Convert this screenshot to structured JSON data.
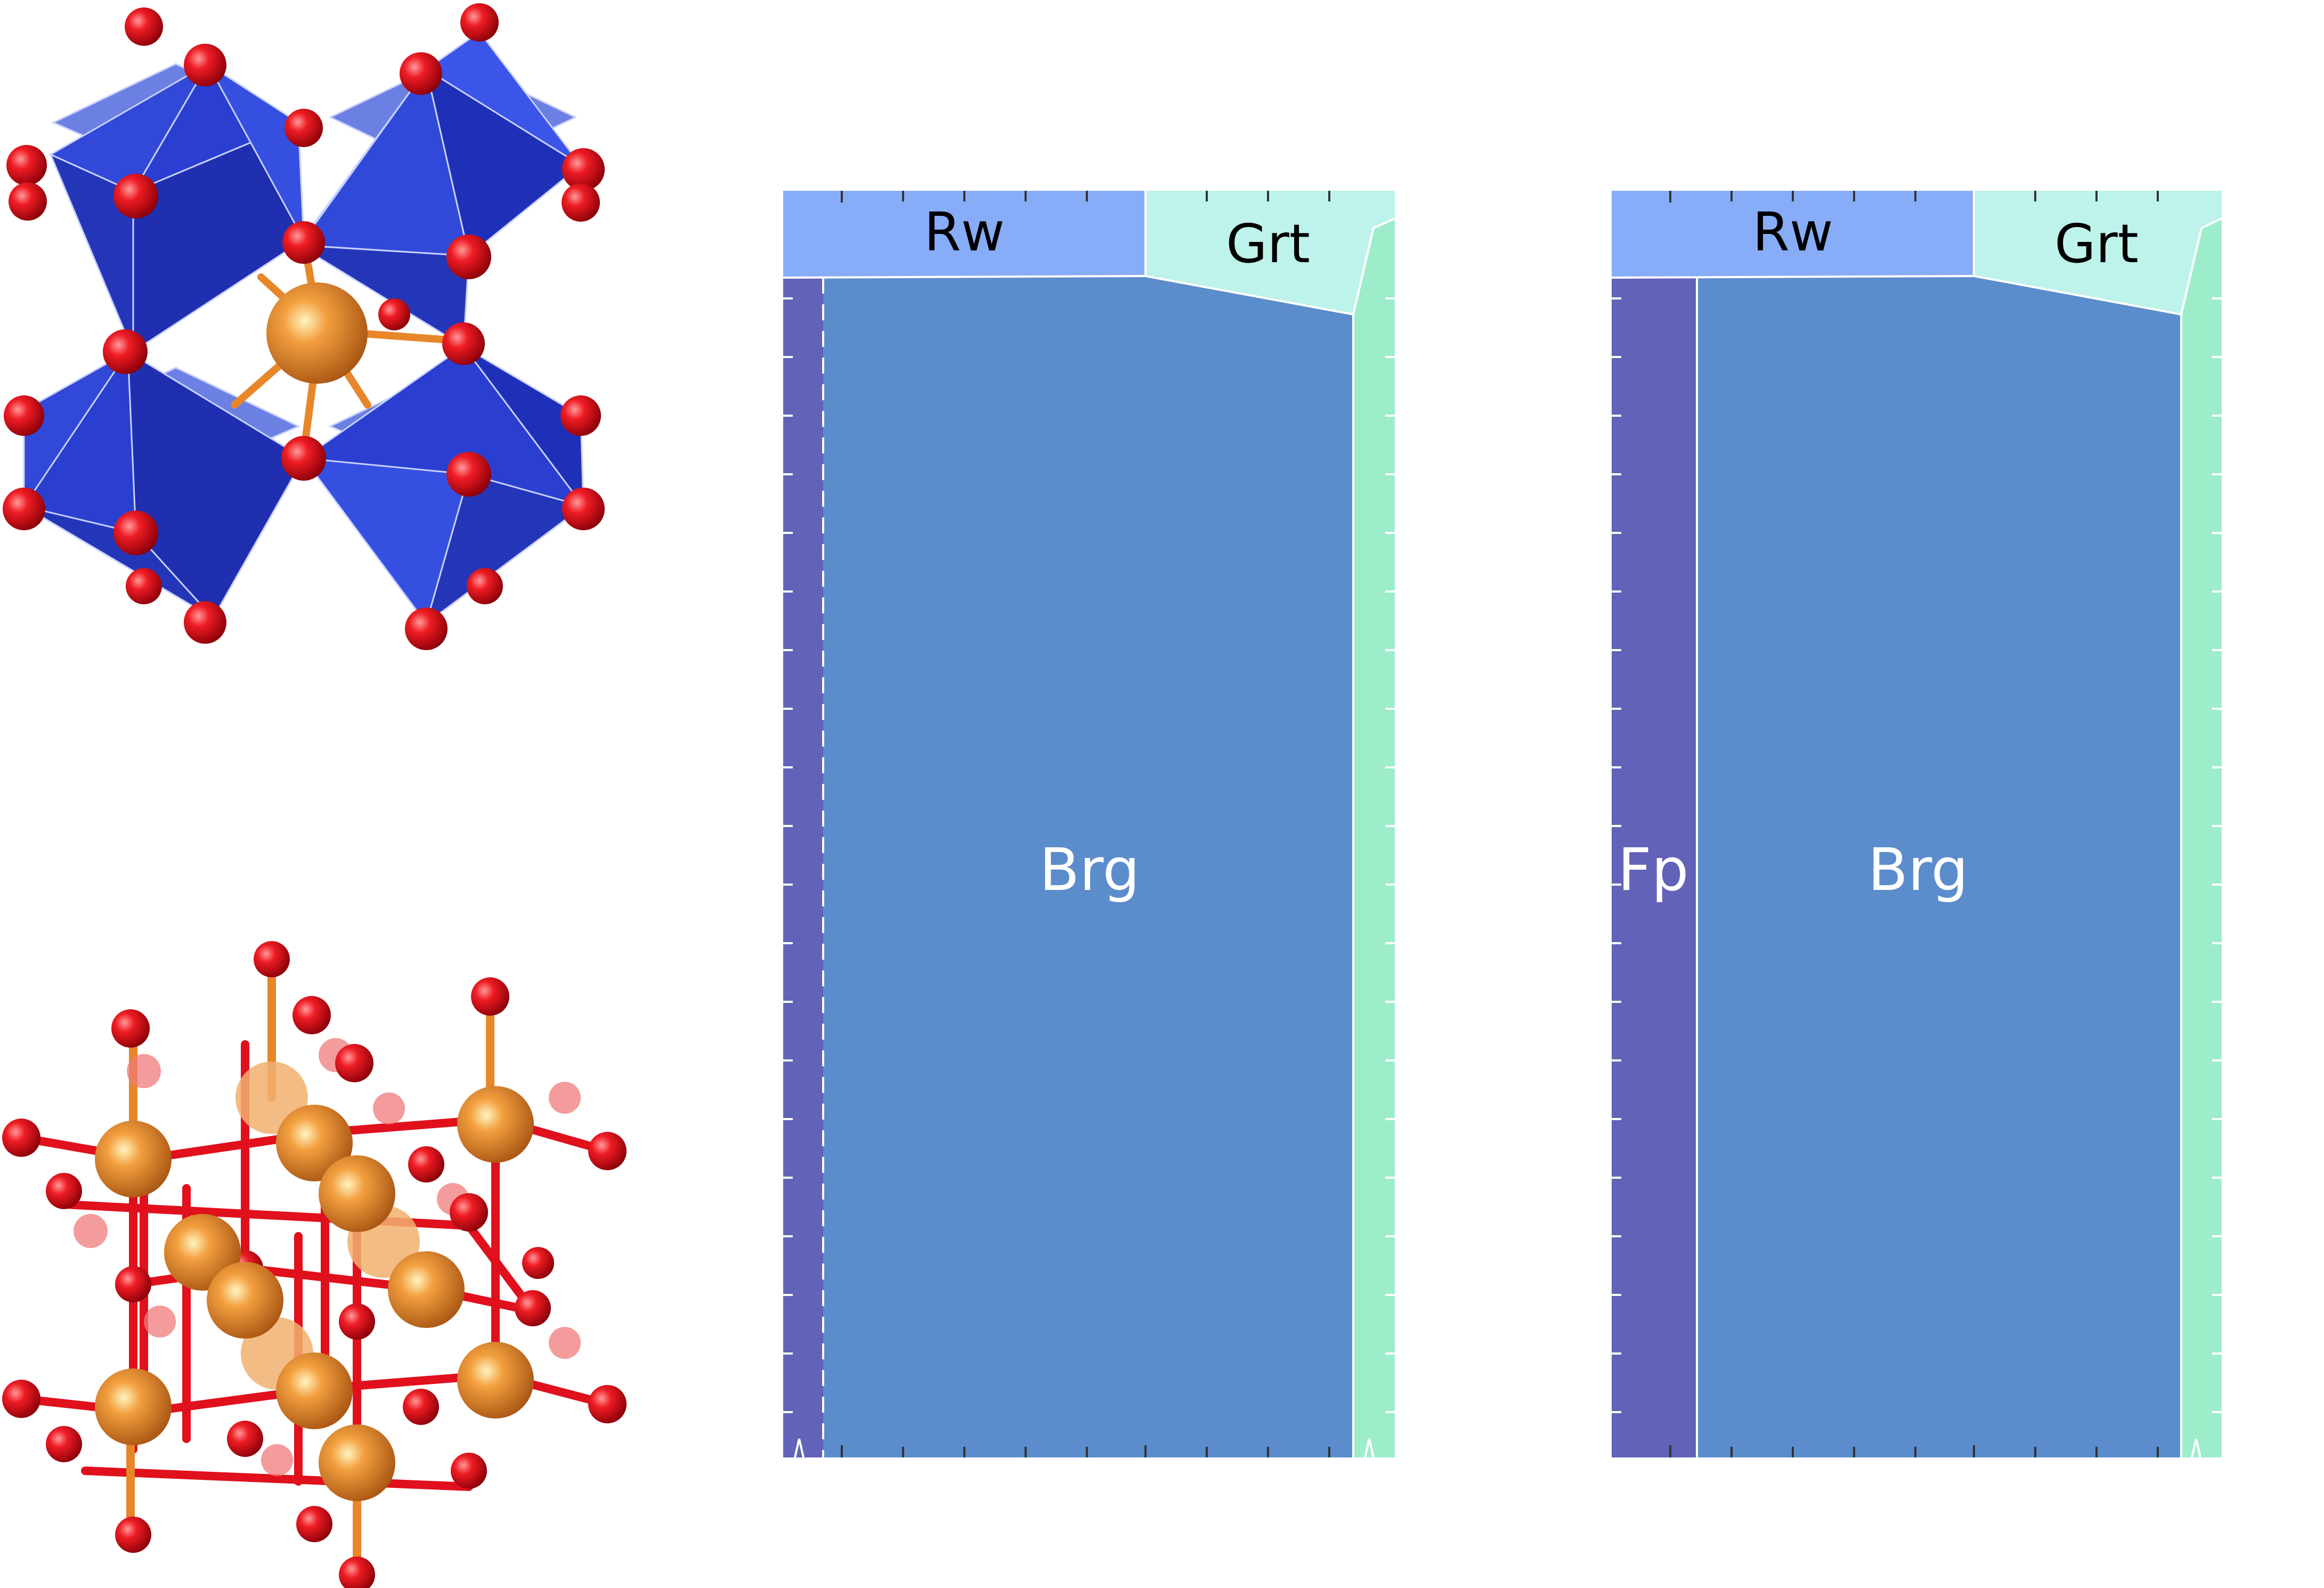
{
  "labels": {
    "left_panel": {
      "rw": "Rw",
      "grt": "Grt",
      "brg": "Brg"
    },
    "right_panel": {
      "rw": "Rw",
      "grt": "Grt",
      "brg": "Brg",
      "fp": "Fp"
    }
  },
  "colors": {
    "rw": "#88adf8",
    "grt": "#bdf3eb",
    "grt_edge": "#9decca",
    "brg": "#5b8ccc",
    "fp": "#6162b8",
    "octahedron": "#2f45d0",
    "oxygen": "#e0101c",
    "cation": "#e8862a"
  },
  "icons": [
    "perovskite-octahedra-structure",
    "rocksalt-lattice-structure"
  ]
}
